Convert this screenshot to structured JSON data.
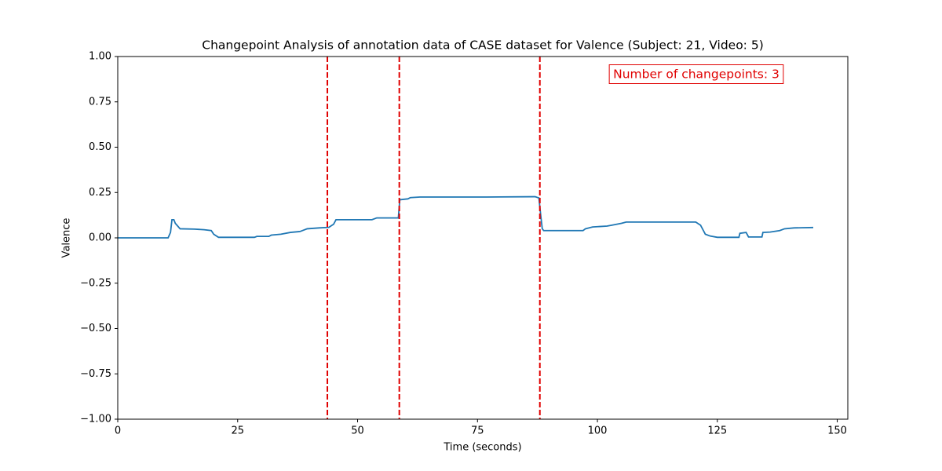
{
  "chart_data": {
    "type": "line",
    "title": "Changepoint Analysis of annotation data of CASE dataset for Valence (Subject: 21, Video: 5)",
    "x_label": "Time (seconds)",
    "y_label": "Valence",
    "annotation": "Number of changepoints: 3",
    "annotation_color": "#e00000",
    "changepoints": [
      43.7,
      58.7,
      88.0
    ],
    "changepoint_color": "#e00000",
    "series": [
      {
        "color": "#1f77b4",
        "x": [
          0,
          10.5,
          11,
          11.3,
          11.7,
          12,
          13,
          16,
          18,
          19.5,
          20,
          21,
          28.5,
          29,
          31.5,
          32,
          34,
          36,
          38,
          39.5,
          42,
          44,
          45,
          45.5,
          53,
          54,
          58.5,
          58.8,
          60.5,
          61,
          63,
          77,
          87,
          87.8,
          88.2,
          88.5,
          88.8,
          97,
          97.5,
          99,
          102,
          103,
          105,
          106,
          110,
          120.5,
          121.5,
          122.5,
          123.5,
          125,
          129.5,
          129.7,
          131,
          131.5,
          134.3,
          134.5,
          136,
          138,
          139,
          141,
          145
        ],
        "values": [
          0,
          0,
          0.03,
          0.1,
          0.1,
          0.08,
          0.05,
          0.048,
          0.045,
          0.04,
          0.02,
          0.003,
          0.003,
          0.008,
          0.008,
          0.015,
          0.02,
          0.03,
          0.035,
          0.05,
          0.055,
          0.058,
          0.075,
          0.1,
          0.1,
          0.11,
          0.11,
          0.21,
          0.215,
          0.222,
          0.225,
          0.225,
          0.227,
          0.22,
          0.12,
          0.05,
          0.04,
          0.04,
          0.05,
          0.06,
          0.065,
          0.07,
          0.08,
          0.087,
          0.087,
          0.087,
          0.07,
          0.02,
          0.01,
          0.003,
          0.003,
          0.025,
          0.03,
          0.005,
          0.005,
          0.03,
          0.032,
          0.04,
          0.05,
          0.055,
          0.057
        ]
      }
    ],
    "xlim": [
      0,
      152.2
    ],
    "xticks": [
      0,
      25,
      50,
      75,
      100,
      125,
      150
    ],
    "ylim": [
      -1,
      1
    ],
    "yticks": [
      {
        "value": -1,
        "label": "−1.00"
      },
      {
        "value": -0.75,
        "label": "−0.75"
      },
      {
        "value": -0.5,
        "label": "−0.50"
      },
      {
        "value": -0.25,
        "label": "−0.25"
      },
      {
        "value": 0,
        "label": "0.00"
      },
      {
        "value": 0.25,
        "label": "0.25"
      },
      {
        "value": 0.5,
        "label": "0.50"
      },
      {
        "value": 0.75,
        "label": "0.75"
      },
      {
        "value": 1,
        "label": "1.00"
      }
    ],
    "grid": false
  }
}
